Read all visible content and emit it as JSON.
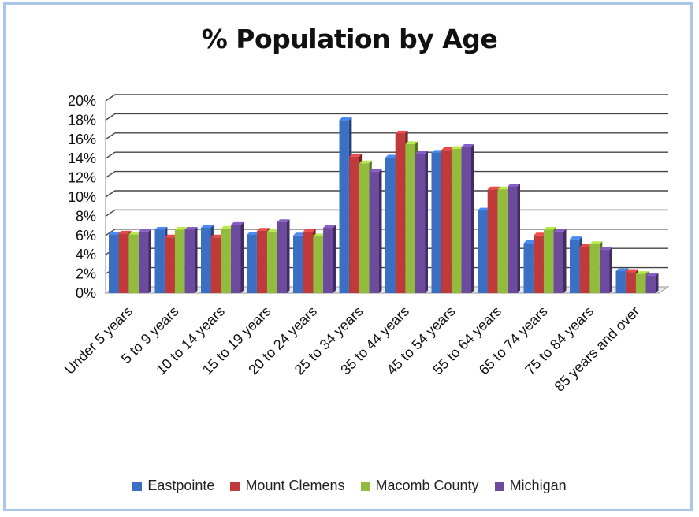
{
  "chart_data": {
    "type": "bar",
    "title": "% Population by Age",
    "categories": [
      "Under 5 years",
      "5 to 9 years",
      "10 to 14 years",
      "15 to 19 years",
      "20 to 24 years",
      "25 to 34 years",
      "35 to 44 years",
      "45 to 54 years",
      "55 to 64 years",
      "65 to 74 years",
      "75 to 84 years",
      "85 years and over"
    ],
    "y_ticks": [
      "0%",
      "2%",
      "4%",
      "6%",
      "8%",
      "10%",
      "12%",
      "14%",
      "16%",
      "18%",
      "20%"
    ],
    "ylim": [
      0,
      20
    ],
    "grid": true,
    "legend_position": "bottom",
    "series": [
      {
        "name": "Eastpointe",
        "color": "#3a6fc4",
        "values": [
          6.1,
          6.6,
          6.8,
          6.1,
          6.0,
          18.0,
          14.1,
          14.6,
          8.6,
          5.2,
          5.6,
          2.3
        ]
      },
      {
        "name": "Mount Clemens",
        "color": "#c0393b",
        "values": [
          6.2,
          5.8,
          5.8,
          6.5,
          6.4,
          14.2,
          16.6,
          14.9,
          10.8,
          6.0,
          4.8,
          2.2
        ]
      },
      {
        "name": "Macomb County",
        "color": "#93bb3e",
        "values": [
          6.1,
          6.6,
          6.7,
          6.4,
          5.9,
          13.5,
          15.5,
          15.0,
          10.8,
          6.6,
          5.1,
          2.0
        ]
      },
      {
        "name": "Michigan",
        "color": "#6c4a9e",
        "values": [
          6.4,
          6.6,
          7.1,
          7.4,
          6.8,
          12.6,
          14.5,
          15.2,
          11.1,
          6.4,
          4.5,
          1.8
        ]
      }
    ]
  }
}
